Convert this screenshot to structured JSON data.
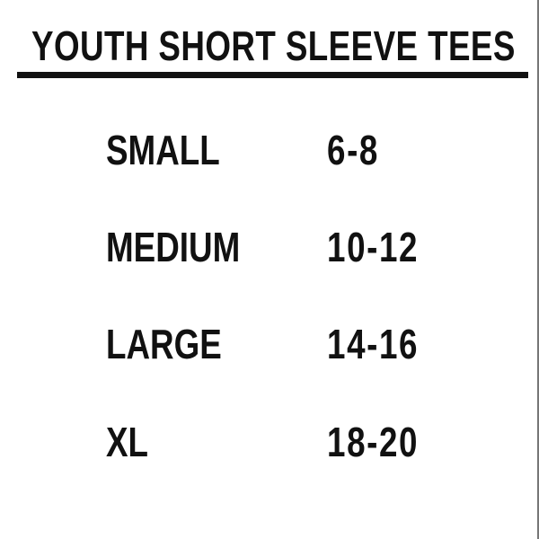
{
  "title": "YOUTH SHORT SLEEVE TEES",
  "colors": {
    "text": "#111111",
    "background": "#ffffff",
    "divider": "#111111",
    "right_edge_line": "#777777"
  },
  "chart_data": {
    "type": "table",
    "title": "YOUTH SHORT SLEEVE TEES",
    "legend_position": "none",
    "grid": false,
    "rows": [
      {
        "size": "SMALL",
        "range": "6-8"
      },
      {
        "size": "MEDIUM",
        "range": "10-12"
      },
      {
        "size": "LARGE",
        "range": "14-16"
      },
      {
        "size": "XL",
        "range": "18-20"
      }
    ]
  }
}
